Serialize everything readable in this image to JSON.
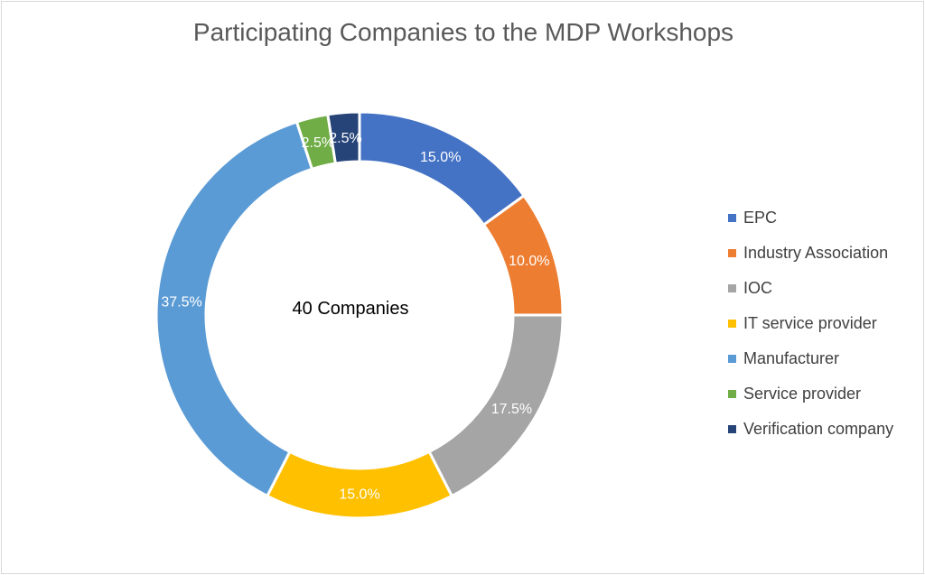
{
  "chart_data": {
    "type": "pie",
    "title": "Participating Companies to the MDP Workshops",
    "center_label": "40 Companies",
    "categories": [
      "EPC",
      "Industry Association",
      "IOC",
      "IT service provider",
      "Manufacturer",
      "Service provider",
      "Verification company"
    ],
    "values": [
      15.0,
      10.0,
      17.5,
      15.0,
      37.5,
      2.5,
      2.5
    ],
    "data_labels": [
      "15.0%",
      "10.0%",
      "17.5%",
      "15.0%",
      "37.5%",
      "2.5%",
      "2.5%"
    ],
    "colors": [
      "#4472c4",
      "#ed7d31",
      "#a5a5a5",
      "#ffc000",
      "#5b9bd5",
      "#70ad47",
      "#264478"
    ],
    "donut": true,
    "legend_position": "right"
  }
}
